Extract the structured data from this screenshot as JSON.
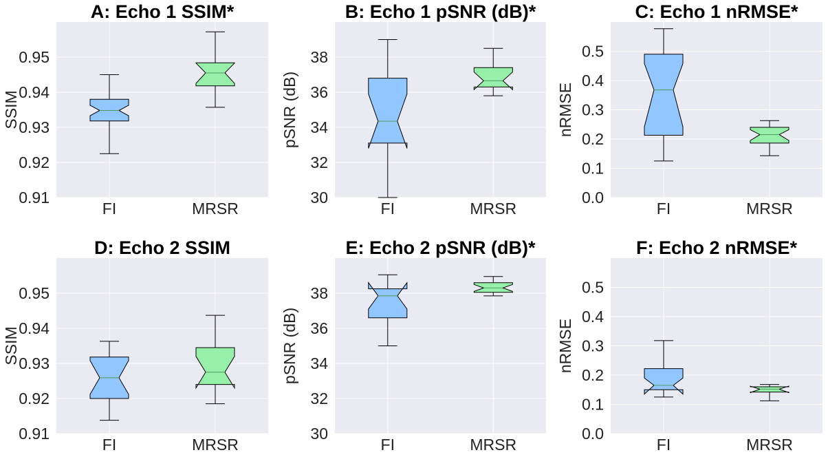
{
  "colors": {
    "background": "#EAEAF2",
    "grid": "#FFFFFF",
    "fi_box": "#92C6FF",
    "mrsr_box": "#97F0AA",
    "median": "#4C9A5A",
    "edge": "#000000"
  },
  "chart_data": [
    {
      "type": "boxplot",
      "title": "A: Echo 1 SSIM*",
      "ylabel": "SSIM",
      "ylim": [
        0.91,
        0.96
      ],
      "yticks": [
        0.91,
        0.92,
        0.93,
        0.94,
        0.95
      ],
      "ytick_labels": [
        "0.91",
        "0.92",
        "0.93",
        "0.94",
        "0.95"
      ],
      "categories": [
        "FI",
        "MRSR"
      ],
      "boxes": [
        {
          "name": "FI",
          "whislo": 0.9225,
          "q1": 0.9318,
          "med": 0.9348,
          "q3": 0.938,
          "whishi": 0.945,
          "notch_lo": 0.9333,
          "notch_hi": 0.9363
        },
        {
          "name": "MRSR",
          "whislo": 0.9357,
          "q1": 0.9418,
          "med": 0.9455,
          "q3": 0.9484,
          "whishi": 0.9572,
          "notch_lo": 0.9425,
          "notch_hi": 0.9483
        }
      ]
    },
    {
      "type": "boxplot",
      "title": "B: Echo 1 pSNR (dB)*",
      "ylabel": "pSNR (dB)",
      "ylim": [
        30,
        40
      ],
      "yticks": [
        30,
        32,
        34,
        36,
        38
      ],
      "ytick_labels": [
        "30",
        "32",
        "34",
        "36",
        "38"
      ],
      "categories": [
        "FI",
        "MRSR"
      ],
      "boxes": [
        {
          "name": "FI",
          "whislo": 30,
          "q1": 33.1,
          "med": 34.35,
          "q3": 36.8,
          "whishi": 39,
          "notch_lo": 32.8,
          "notch_hi": 35.9
        },
        {
          "name": "MRSR",
          "whislo": 35.8,
          "q1": 36.3,
          "med": 36.65,
          "q3": 37.4,
          "whishi": 38.5,
          "notch_lo": 36.15,
          "notch_hi": 37.15
        }
      ]
    },
    {
      "type": "boxplot",
      "title": "C: Echo 1 nRMSE*",
      "ylabel": "nRMSE",
      "ylim": [
        0,
        0.6
      ],
      "yticks": [
        0,
        0.1,
        0.2,
        0.3,
        0.4,
        0.5
      ],
      "ytick_labels": [
        "0.0",
        "0.1",
        "0.2",
        "0.3",
        "0.4",
        "0.5"
      ],
      "categories": [
        "FI",
        "MRSR"
      ],
      "boxes": [
        {
          "name": "FI",
          "whislo": 0.125,
          "q1": 0.213,
          "med": 0.368,
          "q3": 0.49,
          "whishi": 0.577,
          "notch_lo": 0.242,
          "notch_hi": 0.458
        },
        {
          "name": "MRSR",
          "whislo": 0.143,
          "q1": 0.186,
          "med": 0.215,
          "q3": 0.24,
          "whishi": 0.263,
          "notch_lo": 0.195,
          "notch_hi": 0.232
        }
      ]
    },
    {
      "type": "boxplot",
      "title": "D: Echo 2 SSIM",
      "ylabel": "SSIM",
      "ylim": [
        0.91,
        0.96
      ],
      "yticks": [
        0.91,
        0.92,
        0.93,
        0.94,
        0.95
      ],
      "ytick_labels": [
        "0.91",
        "0.92",
        "0.93",
        "0.94",
        "0.95"
      ],
      "categories": [
        "FI",
        "MRSR"
      ],
      "boxes": [
        {
          "name": "FI",
          "whislo": 0.9138,
          "q1": 0.92,
          "med": 0.9259,
          "q3": 0.9318,
          "whishi": 0.9363,
          "notch_lo": 0.9212,
          "notch_hi": 0.9308
        },
        {
          "name": "MRSR",
          "whislo": 0.9185,
          "q1": 0.924,
          "med": 0.9275,
          "q3": 0.9345,
          "whishi": 0.9437,
          "notch_lo": 0.923,
          "notch_hi": 0.932
        }
      ]
    },
    {
      "type": "boxplot",
      "title": "E: Echo 2 pSNR (dB)*",
      "ylabel": "pSNR (dB)",
      "ylim": [
        30,
        40
      ],
      "yticks": [
        30,
        32,
        34,
        36,
        38
      ],
      "ytick_labels": [
        "30",
        "32",
        "34",
        "36",
        "38"
      ],
      "categories": [
        "FI",
        "MRSR"
      ],
      "boxes": [
        {
          "name": "FI",
          "whislo": 35,
          "q1": 36.6,
          "med": 37.85,
          "q3": 38.25,
          "whishi": 39.05,
          "notch_lo": 37.1,
          "notch_hi": 38.6
        },
        {
          "name": "MRSR",
          "whislo": 37.85,
          "q1": 38.05,
          "med": 38.3,
          "q3": 38.6,
          "whishi": 38.95,
          "notch_lo": 38.1,
          "notch_hi": 38.5
        }
      ]
    },
    {
      "type": "boxplot",
      "title": "F: Echo 2 nRMSE*",
      "ylabel": "nRMSE",
      "ylim": [
        0,
        0.6
      ],
      "yticks": [
        0,
        0.1,
        0.2,
        0.3,
        0.4,
        0.5
      ],
      "ytick_labels": [
        "0.0",
        "0.1",
        "0.2",
        "0.3",
        "0.4",
        "0.5"
      ],
      "categories": [
        "FI",
        "MRSR"
      ],
      "boxes": [
        {
          "name": "FI",
          "whislo": 0.125,
          "q1": 0.15,
          "med": 0.165,
          "q3": 0.222,
          "whishi": 0.318,
          "notch_lo": 0.135,
          "notch_hi": 0.19
        },
        {
          "name": "MRSR",
          "whislo": 0.112,
          "q1": 0.142,
          "med": 0.152,
          "q3": 0.16,
          "whishi": 0.168,
          "notch_lo": 0.14,
          "notch_hi": 0.162
        }
      ]
    }
  ]
}
